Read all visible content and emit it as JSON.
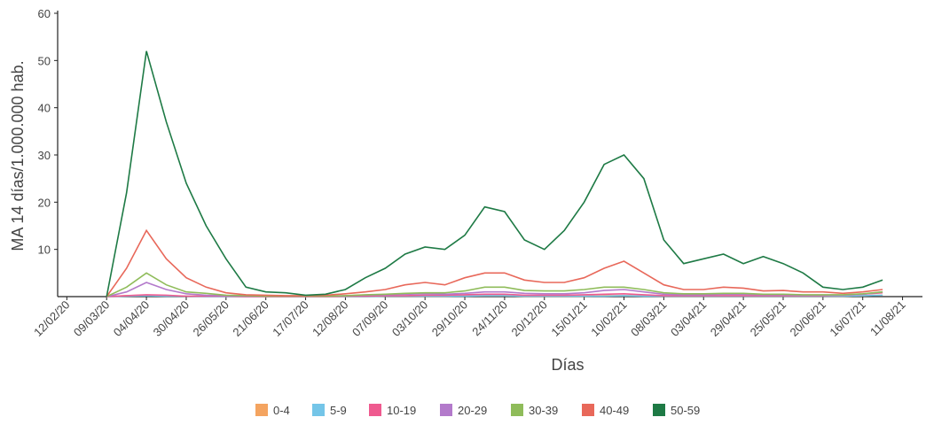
{
  "chart_data": {
    "type": "line",
    "x_label": "Días",
    "y_label": "MA 14 días/1.000.000 hab.",
    "x": [
      "09/03/20",
      "22/03/20",
      "04/04/20",
      "17/04/20",
      "30/04/20",
      "13/05/20",
      "26/05/20",
      "08/06/20",
      "21/06/20",
      "04/07/20",
      "17/07/20",
      "30/07/20",
      "12/08/20",
      "25/08/20",
      "07/09/20",
      "20/09/20",
      "03/10/20",
      "16/10/20",
      "29/10/20",
      "11/11/20",
      "24/11/20",
      "07/12/20",
      "20/12/20",
      "02/01/21",
      "15/01/21",
      "28/01/21",
      "10/02/21",
      "23/02/21",
      "08/03/21",
      "21/03/21",
      "03/04/21",
      "16/04/21",
      "29/04/21",
      "12/05/21",
      "25/05/21",
      "07/06/21",
      "20/06/21",
      "03/07/21",
      "16/07/21",
      "29/07/21"
    ],
    "xlim": [
      "06/02/20",
      "24/08/21"
    ],
    "xticks": [
      "12/02/20",
      "09/03/20",
      "04/04/20",
      "30/04/20",
      "26/05/20",
      "21/06/20",
      "17/07/20",
      "12/08/20",
      "07/09/20",
      "03/10/20",
      "29/10/20",
      "24/11/20",
      "20/12/20",
      "15/01/21",
      "10/02/21",
      "08/03/21",
      "03/04/21",
      "29/04/21",
      "25/05/21",
      "20/06/21",
      "16/07/21",
      "11/08/21"
    ],
    "ylim": [
      0,
      60
    ],
    "yticks": [
      10,
      20,
      30,
      40,
      50,
      60
    ],
    "series": [
      {
        "name": "0-4",
        "color": "#f4a460",
        "values": [
          0,
          0.2,
          0.3,
          0.2,
          0.1,
          0.1,
          0.1,
          0,
          0,
          0,
          0,
          0,
          0,
          0,
          0.1,
          0.1,
          0.1,
          0.1,
          0.2,
          0.2,
          0.2,
          0.1,
          0.1,
          0.1,
          0.1,
          0.2,
          0.2,
          0.2,
          0.1,
          0.1,
          0.1,
          0.1,
          0.1,
          0.1,
          0.1,
          0.1,
          0.1,
          0.1,
          0.2,
          0.3
        ]
      },
      {
        "name": "5-9",
        "color": "#74c5e8",
        "values": [
          0,
          0.1,
          0.2,
          0.1,
          0.1,
          0,
          0,
          0,
          0,
          0,
          0,
          0,
          0,
          0,
          0.1,
          0.1,
          0.1,
          0.1,
          0.1,
          0.2,
          0.2,
          0.1,
          0.1,
          0.1,
          0.1,
          0.1,
          0.2,
          0.1,
          0.1,
          0.1,
          0.1,
          0.1,
          0.1,
          0.1,
          0.1,
          0.1,
          0.1,
          0.1,
          0.2,
          0.3
        ]
      },
      {
        "name": "10-19",
        "color": "#ef5a8f",
        "values": [
          0,
          0.2,
          0.4,
          0.3,
          0.1,
          0.1,
          0.1,
          0,
          0,
          0,
          0,
          0,
          0.1,
          0.1,
          0.2,
          0.2,
          0.3,
          0.3,
          0.4,
          0.5,
          0.5,
          0.3,
          0.3,
          0.3,
          0.4,
          0.5,
          0.6,
          0.4,
          0.2,
          0.2,
          0.2,
          0.2,
          0.2,
          0.2,
          0.2,
          0.2,
          0.2,
          0.3,
          0.5,
          0.8
        ]
      },
      {
        "name": "20-29",
        "color": "#b37acb",
        "values": [
          0,
          1,
          3,
          1.5,
          0.6,
          0.3,
          0.2,
          0.1,
          0.1,
          0.1,
          0.1,
          0.1,
          0.2,
          0.3,
          0.4,
          0.5,
          0.6,
          0.5,
          0.7,
          1,
          1,
          0.7,
          0.6,
          0.6,
          0.8,
          1.3,
          1.5,
          1,
          0.5,
          0.4,
          0.4,
          0.5,
          0.5,
          0.4,
          0.4,
          0.3,
          0.3,
          0.3,
          0.5,
          1
        ]
      },
      {
        "name": "30-39",
        "color": "#8fbc5a",
        "values": [
          0,
          2,
          5,
          2.5,
          1,
          0.7,
          0.3,
          0.2,
          0.1,
          0.1,
          0.1,
          0.1,
          0.2,
          0.4,
          0.5,
          0.7,
          0.8,
          0.8,
          1.2,
          2,
          2,
          1.3,
          1.2,
          1.2,
          1.5,
          2,
          2,
          1.5,
          0.8,
          0.6,
          0.6,
          0.7,
          0.7,
          0.5,
          0.5,
          0.4,
          0.4,
          0.4,
          0.6,
          1
        ]
      },
      {
        "name": "40-49",
        "color": "#e8685a",
        "values": [
          0,
          6,
          14,
          8,
          4,
          2,
          0.8,
          0.4,
          0.3,
          0.2,
          0.2,
          0.3,
          0.6,
          1,
          1.5,
          2.5,
          3,
          2.5,
          4,
          5,
          5,
          3.5,
          3,
          3,
          4,
          6,
          7.5,
          5,
          2.5,
          1.5,
          1.5,
          2,
          1.8,
          1.2,
          1.3,
          1,
          1,
          0.7,
          1,
          1.5
        ]
      },
      {
        "name": "50-59",
        "color": "#1e7a45",
        "values": [
          0,
          22,
          52,
          37,
          24,
          15,
          8,
          2,
          1,
          0.8,
          0.3,
          0.5,
          1.5,
          4,
          6,
          9,
          10.5,
          10,
          13,
          19,
          18,
          12,
          10,
          14,
          20,
          28,
          30,
          25,
          12,
          7,
          8,
          9,
          7,
          8.5,
          7,
          5,
          2,
          1.5,
          2,
          3.5
        ]
      }
    ]
  }
}
